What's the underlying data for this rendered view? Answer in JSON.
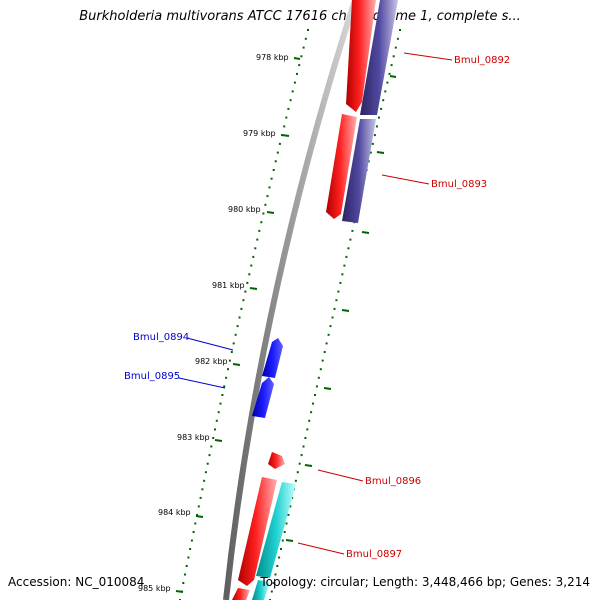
{
  "title": "Burkholderia multivorans ATCC 17616 chromosome 1, complete s...",
  "footer": {
    "accession": "Accession: NC_010084",
    "topology": "Topology: circular; Length: 3,448,466 bp; Genes: 3,214"
  },
  "ticks": [
    {
      "label": "978 kbp",
      "kbp": 978
    },
    {
      "label": "979 kbp",
      "kbp": 979
    },
    {
      "label": "980 kbp",
      "kbp": 980
    },
    {
      "label": "981 kbp",
      "kbp": 981
    },
    {
      "label": "982 kbp",
      "kbp": 982
    },
    {
      "label": "983 kbp",
      "kbp": 983
    },
    {
      "label": "984 kbp",
      "kbp": 984
    },
    {
      "label": "985 kbp",
      "kbp": 985
    }
  ],
  "genes": [
    {
      "name": "Bmul_0892",
      "strand": "forward",
      "color": "#cc0000"
    },
    {
      "name": "Bmul_0893",
      "strand": "forward",
      "color": "#cc0000"
    },
    {
      "name": "Bmul_0894",
      "strand": "reverse",
      "color": "#0000cc"
    },
    {
      "name": "Bmul_0895",
      "strand": "reverse",
      "color": "#0000cc"
    },
    {
      "name": "Bmul_0896",
      "strand": "forward",
      "color": "#cc0000"
    },
    {
      "name": "Bmul_0897",
      "strand": "forward",
      "color": "#cc0000"
    }
  ],
  "colors": {
    "forward_cds": "#ff0000",
    "reverse_cds": "#0000ee",
    "forward_feature": "#483d8b",
    "forward_feature_2": "#00c0c0",
    "tick": "#006400",
    "backbone": "#808080"
  }
}
